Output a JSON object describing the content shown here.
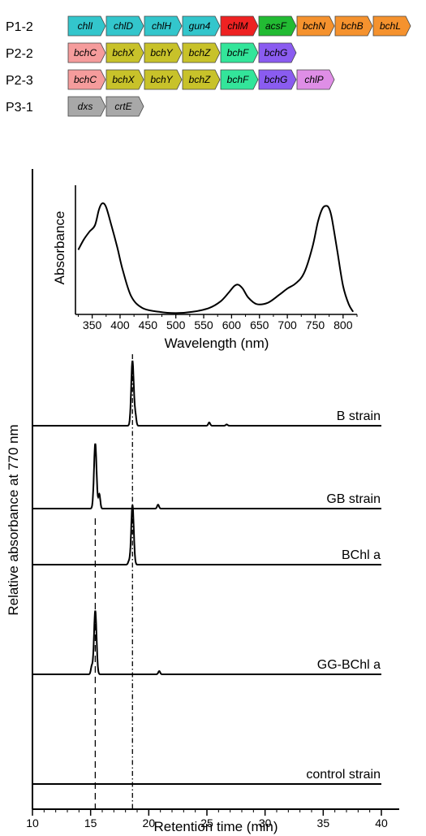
{
  "gene_clusters": [
    {
      "label": "P1-2",
      "genes": [
        {
          "name": "chlI",
          "color": "#33c6cc"
        },
        {
          "name": "chlD",
          "color": "#33c6cc"
        },
        {
          "name": "chlH",
          "color": "#33c6cc"
        },
        {
          "name": "gun4",
          "color": "#33c6cc"
        },
        {
          "name": "chlM",
          "color": "#ee2222"
        },
        {
          "name": "acsF",
          "color": "#22bb33"
        },
        {
          "name": "bchN",
          "color": "#f5922e"
        },
        {
          "name": "bchB",
          "color": "#f5922e"
        },
        {
          "name": "bchL",
          "color": "#f5922e"
        }
      ]
    },
    {
      "label": "P2-2",
      "genes": [
        {
          "name": "bchC",
          "color": "#f59c9c"
        },
        {
          "name": "bchX",
          "color": "#c8c22a"
        },
        {
          "name": "bchY",
          "color": "#c8c22a"
        },
        {
          "name": "bchZ",
          "color": "#c8c22a"
        },
        {
          "name": "bchF",
          "color": "#33e59a"
        },
        {
          "name": "bchG",
          "color": "#8a5cf0"
        }
      ]
    },
    {
      "label": "P2-3",
      "genes": [
        {
          "name": "bchC",
          "color": "#f59c9c"
        },
        {
          "name": "bchX",
          "color": "#c8c22a"
        },
        {
          "name": "bchY",
          "color": "#c8c22a"
        },
        {
          "name": "bchZ",
          "color": "#c8c22a"
        },
        {
          "name": "bchF",
          "color": "#33e59a"
        },
        {
          "name": "bchG",
          "color": "#8a5cf0"
        },
        {
          "name": "chlP",
          "color": "#df8ee6"
        }
      ]
    },
    {
      "label": "P3-1",
      "genes": [
        {
          "name": "dxs",
          "color": "#a8a8a8"
        },
        {
          "name": "crtE",
          "color": "#a8a8a8"
        }
      ]
    }
  ],
  "chart_data": [
    {
      "type": "line",
      "title": "",
      "xlabel": "Retention time (min)",
      "ylabel": "Relative absorbance at 770 nm",
      "xlim": [
        10,
        40
      ],
      "xticks": [
        10,
        15,
        20,
        25,
        30,
        35,
        40
      ],
      "reference_lines": [
        {
          "x": 15.4,
          "style": "dashed"
        },
        {
          "x": 18.6,
          "style": "dash-dot"
        }
      ],
      "series": [
        {
          "name": "B strain",
          "peaks": [
            {
              "x": 18.6,
              "height": 1.0
            },
            {
              "x": 18.85,
              "height": 0.15
            },
            {
              "x": 25.2,
              "height": 0.05
            },
            {
              "x": 26.7,
              "height": 0.02
            }
          ]
        },
        {
          "name": "GB strain",
          "peaks": [
            {
              "x": 15.4,
              "height": 1.0
            },
            {
              "x": 15.75,
              "height": 0.22
            },
            {
              "x": 20.8,
              "height": 0.06
            }
          ]
        },
        {
          "name": "BChl a",
          "peaks": [
            {
              "x": 18.6,
              "height": 0.92
            },
            {
              "x": 18.3,
              "height": 0.05
            }
          ]
        },
        {
          "name": "GG-BChl a",
          "peaks": [
            {
              "x": 15.4,
              "height": 0.98
            },
            {
              "x": 15.1,
              "height": 0.12
            },
            {
              "x": 20.9,
              "height": 0.05
            }
          ]
        },
        {
          "name": "control strain",
          "peaks": []
        }
      ]
    },
    {
      "type": "line",
      "title": "",
      "xlabel": "Wavelength (nm)",
      "ylabel": "Absorbance",
      "xlim": [
        320,
        825
      ],
      "xticks": [
        350,
        400,
        450,
        500,
        550,
        600,
        650,
        700,
        750,
        800
      ],
      "series": [
        {
          "name": "",
          "x": [
            325,
            335,
            345,
            355,
            362,
            368,
            375,
            385,
            395,
            405,
            420,
            440,
            470,
            500,
            530,
            560,
            580,
            595,
            605,
            612,
            620,
            630,
            645,
            665,
            685,
            700,
            715,
            730,
            745,
            755,
            763,
            770,
            775,
            780,
            790,
            800,
            810,
            818
          ],
          "y": [
            0.5,
            0.58,
            0.64,
            0.69,
            0.81,
            0.86,
            0.83,
            0.68,
            0.52,
            0.34,
            0.14,
            0.05,
            0.02,
            0.01,
            0.02,
            0.05,
            0.1,
            0.17,
            0.22,
            0.23,
            0.2,
            0.13,
            0.08,
            0.09,
            0.15,
            0.2,
            0.24,
            0.32,
            0.52,
            0.72,
            0.82,
            0.84,
            0.82,
            0.74,
            0.48,
            0.22,
            0.08,
            0.02
          ]
        }
      ]
    }
  ]
}
